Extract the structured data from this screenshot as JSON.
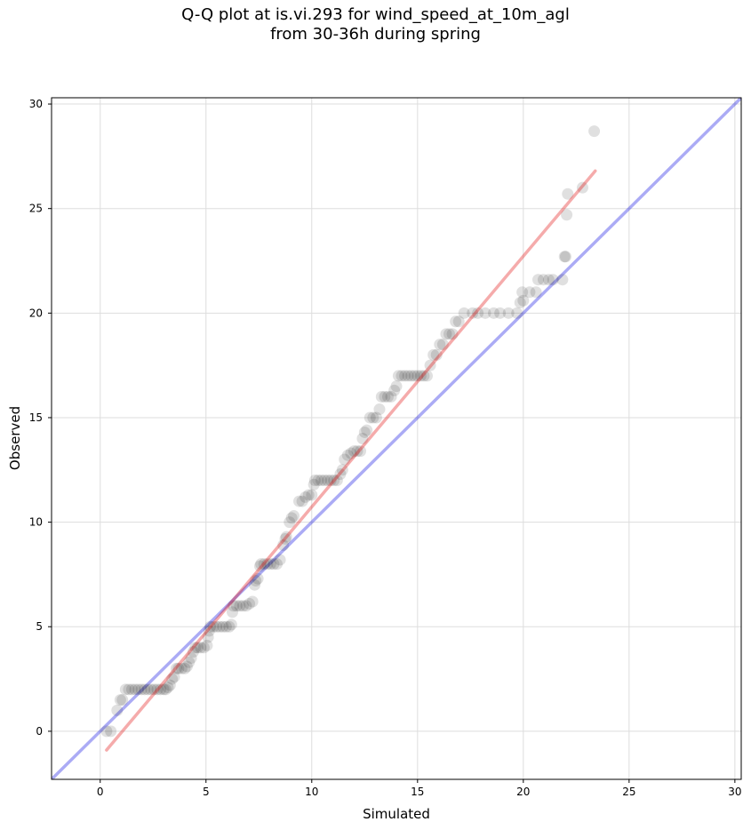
{
  "chart_data": {
    "type": "scatter",
    "title_line1": "Q-Q plot at is.vi.293 for wind_speed_at_10m_agl",
    "title_line2": "from 30-36h during spring",
    "xlabel": "Simulated",
    "ylabel": "Observed",
    "xlim": [
      -2.3,
      30.3
    ],
    "ylim": [
      -2.3,
      30.3
    ],
    "xticks": [
      0,
      5,
      10,
      15,
      20,
      25,
      30
    ],
    "yticks": [
      0,
      5,
      10,
      15,
      20,
      25,
      30
    ],
    "grid": true,
    "colors": {
      "points": "#000000",
      "identity_line": "#0000e0",
      "fit_line": "#e00000",
      "grid": "#dddddd"
    },
    "identity_line": {
      "x": [
        -2.3,
        30.3
      ],
      "y": [
        -2.3,
        30.3
      ]
    },
    "fit_line": {
      "x": [
        0.3,
        23.4
      ],
      "y": [
        -0.9,
        26.8
      ]
    },
    "points": [
      [
        0.3,
        0.0
      ],
      [
        0.5,
        0.0
      ],
      [
        0.8,
        1.0
      ],
      [
        0.95,
        1.5
      ],
      [
        1.05,
        1.5
      ],
      [
        1.2,
        2.0
      ],
      [
        1.35,
        2.0
      ],
      [
        1.5,
        2.0
      ],
      [
        1.65,
        2.0
      ],
      [
        1.8,
        2.0
      ],
      [
        1.95,
        2.0
      ],
      [
        2.1,
        2.0
      ],
      [
        2.25,
        2.0
      ],
      [
        2.4,
        2.0
      ],
      [
        2.55,
        2.0
      ],
      [
        2.7,
        2.0
      ],
      [
        2.85,
        2.0
      ],
      [
        3.0,
        2.0
      ],
      [
        3.1,
        2.0
      ],
      [
        3.2,
        2.1
      ],
      [
        3.3,
        2.2
      ],
      [
        3.4,
        2.5
      ],
      [
        3.5,
        2.6
      ],
      [
        3.6,
        3.0
      ],
      [
        3.7,
        3.0
      ],
      [
        3.85,
        3.0
      ],
      [
        4.0,
        3.0
      ],
      [
        4.1,
        3.1
      ],
      [
        4.2,
        3.3
      ],
      [
        4.3,
        3.5
      ],
      [
        4.4,
        3.8
      ],
      [
        4.5,
        4.0
      ],
      [
        4.6,
        4.0
      ],
      [
        4.75,
        4.0
      ],
      [
        4.9,
        4.0
      ],
      [
        5.05,
        4.1
      ],
      [
        5.1,
        4.5
      ],
      [
        5.15,
        4.8
      ],
      [
        5.2,
        5.0
      ],
      [
        5.35,
        5.0
      ],
      [
        5.5,
        5.0
      ],
      [
        5.65,
        5.0
      ],
      [
        5.8,
        5.0
      ],
      [
        5.95,
        5.0
      ],
      [
        6.1,
        5.0
      ],
      [
        6.2,
        5.1
      ],
      [
        6.25,
        5.7
      ],
      [
        6.3,
        6.0
      ],
      [
        6.45,
        6.0
      ],
      [
        6.6,
        6.0
      ],
      [
        6.75,
        6.0
      ],
      [
        6.9,
        6.0
      ],
      [
        7.05,
        6.1
      ],
      [
        7.2,
        6.2
      ],
      [
        7.3,
        7.0
      ],
      [
        7.35,
        7.2
      ],
      [
        7.45,
        7.3
      ],
      [
        7.55,
        7.9
      ],
      [
        7.6,
        8.0
      ],
      [
        7.75,
        8.0
      ],
      [
        7.9,
        8.0
      ],
      [
        8.05,
        8.0
      ],
      [
        8.2,
        8.0
      ],
      [
        8.35,
        8.0
      ],
      [
        8.5,
        8.2
      ],
      [
        8.65,
        8.9
      ],
      [
        8.75,
        9.2
      ],
      [
        8.8,
        9.3
      ],
      [
        8.95,
        10.0
      ],
      [
        9.05,
        10.2
      ],
      [
        9.15,
        10.3
      ],
      [
        9.4,
        11.0
      ],
      [
        9.55,
        11.0
      ],
      [
        9.7,
        11.2
      ],
      [
        9.85,
        11.3
      ],
      [
        10.0,
        11.3
      ],
      [
        10.1,
        11.8
      ],
      [
        10.15,
        12.0
      ],
      [
        10.3,
        12.0
      ],
      [
        10.45,
        12.0
      ],
      [
        10.6,
        12.0
      ],
      [
        10.75,
        12.0
      ],
      [
        10.9,
        12.0
      ],
      [
        11.05,
        12.0
      ],
      [
        11.2,
        12.0
      ],
      [
        11.35,
        12.3
      ],
      [
        11.45,
        12.5
      ],
      [
        11.55,
        13.0
      ],
      [
        11.7,
        13.2
      ],
      [
        11.85,
        13.3
      ],
      [
        12.0,
        13.4
      ],
      [
        12.15,
        13.4
      ],
      [
        12.3,
        13.4
      ],
      [
        12.4,
        14.0
      ],
      [
        12.5,
        14.3
      ],
      [
        12.6,
        14.4
      ],
      [
        12.75,
        15.0
      ],
      [
        12.9,
        15.0
      ],
      [
        13.05,
        15.0
      ],
      [
        13.2,
        15.4
      ],
      [
        13.3,
        16.0
      ],
      [
        13.45,
        16.0
      ],
      [
        13.6,
        16.0
      ],
      [
        13.75,
        16.0
      ],
      [
        13.9,
        16.3
      ],
      [
        14.0,
        16.5
      ],
      [
        14.1,
        17.0
      ],
      [
        14.25,
        17.0
      ],
      [
        14.4,
        17.0
      ],
      [
        14.55,
        17.0
      ],
      [
        14.7,
        17.0
      ],
      [
        14.85,
        17.0
      ],
      [
        15.0,
        17.0
      ],
      [
        15.15,
        17.0
      ],
      [
        15.3,
        17.0
      ],
      [
        15.45,
        17.0
      ],
      [
        15.6,
        17.5
      ],
      [
        15.75,
        18.0
      ],
      [
        15.9,
        18.0
      ],
      [
        16.05,
        18.5
      ],
      [
        16.2,
        18.5
      ],
      [
        16.35,
        19.0
      ],
      [
        16.5,
        19.0
      ],
      [
        16.65,
        19.0
      ],
      [
        16.8,
        19.6
      ],
      [
        16.95,
        19.6
      ],
      [
        17.2,
        20.0
      ],
      [
        17.6,
        20.0
      ],
      [
        17.85,
        20.0
      ],
      [
        18.2,
        20.0
      ],
      [
        18.6,
        20.0
      ],
      [
        18.9,
        20.0
      ],
      [
        19.3,
        20.0
      ],
      [
        19.7,
        20.0
      ],
      [
        19.85,
        20.5
      ],
      [
        20.0,
        20.6
      ],
      [
        19.95,
        21.0
      ],
      [
        20.3,
        21.0
      ],
      [
        20.6,
        21.0
      ],
      [
        20.7,
        21.6
      ],
      [
        20.95,
        21.6
      ],
      [
        21.2,
        21.6
      ],
      [
        21.4,
        21.6
      ],
      [
        21.85,
        21.6
      ],
      [
        21.95,
        22.7
      ],
      [
        22.0,
        22.7
      ],
      [
        22.05,
        24.7
      ],
      [
        22.1,
        25.7
      ],
      [
        22.8,
        26.0
      ],
      [
        23.35,
        28.7
      ]
    ]
  }
}
